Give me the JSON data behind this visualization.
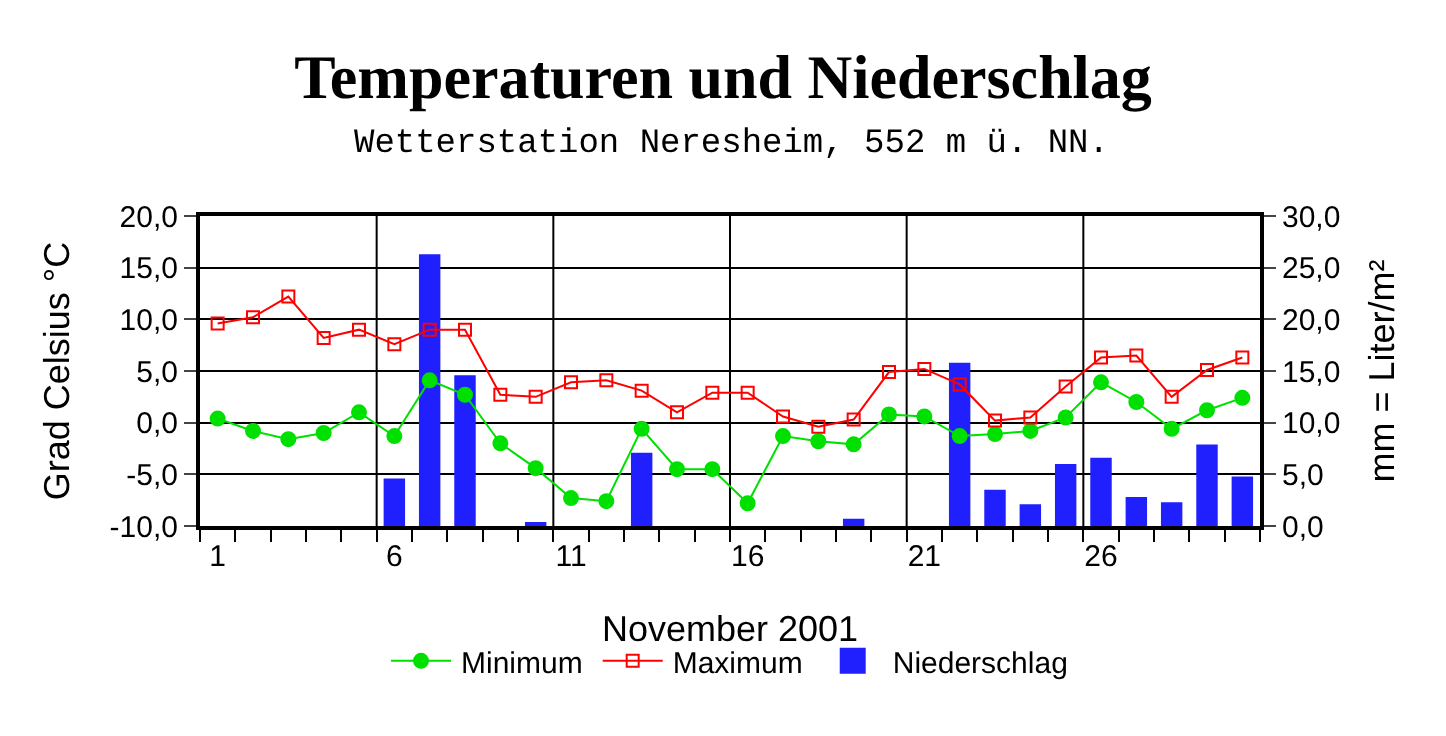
{
  "chart_data": {
    "type": "line",
    "title": "Temperaturen und Niederschlag",
    "subtitle": "Wetterstation Neresheim, 552 m ü. NN.",
    "xlabel": "November 2001",
    "ylabel": "Grad Celsius °C",
    "y2label": "mm = Liter/m²",
    "x": [
      1,
      2,
      3,
      4,
      5,
      6,
      7,
      8,
      9,
      10,
      11,
      12,
      13,
      14,
      15,
      16,
      17,
      18,
      19,
      20,
      21,
      22,
      23,
      24,
      25,
      26,
      27,
      28,
      29,
      30
    ],
    "series": [
      {
        "name": "Minimum",
        "color": "#00e000",
        "marker": "circle",
        "values": [
          0.4,
          -0.8,
          -1.6,
          -1.0,
          1.0,
          -1.3,
          4.1,
          2.7,
          -2.0,
          -4.4,
          -7.3,
          -7.6,
          -0.6,
          -4.5,
          -4.5,
          -7.8,
          -1.3,
          -1.8,
          -2.1,
          0.8,
          0.6,
          -1.3,
          -1.1,
          -0.8,
          0.5,
          3.9,
          2.0,
          -0.6,
          1.2,
          2.4
        ]
      },
      {
        "name": "Maximum",
        "color": "#ff0000",
        "marker": "square",
        "values": [
          9.6,
          10.2,
          12.2,
          8.2,
          9.0,
          7.6,
          9.0,
          9.0,
          2.7,
          2.5,
          3.9,
          4.1,
          3.1,
          1.0,
          2.9,
          2.9,
          0.6,
          -0.4,
          0.3,
          4.9,
          5.2,
          3.7,
          0.2,
          0.5,
          3.5,
          6.3,
          6.5,
          2.5,
          5.1,
          6.3
        ]
      },
      {
        "name": "Niederschlag",
        "type": "bar",
        "axis": "y2",
        "color": "#2020ff",
        "values": [
          null,
          null,
          null,
          null,
          null,
          4.5,
          26.2,
          14.5,
          null,
          0.3,
          null,
          null,
          7.0,
          null,
          null,
          null,
          null,
          null,
          0.6,
          null,
          null,
          15.7,
          3.4,
          2.0,
          5.9,
          6.5,
          2.7,
          2.2,
          7.8,
          4.7
        ]
      }
    ],
    "xlim": [
      0.5,
      30.5
    ],
    "xticks": [
      1,
      6,
      11,
      16,
      21,
      26
    ],
    "ylim": [
      -10,
      20
    ],
    "yticks": [
      {
        "value": -10,
        "label": "-10,0"
      },
      {
        "value": -5,
        "label": "-5,0"
      },
      {
        "value": 0,
        "label": "0,0"
      },
      {
        "value": 5,
        "label": "5,0"
      },
      {
        "value": 10,
        "label": "10,0"
      },
      {
        "value": 15,
        "label": "15,0"
      },
      {
        "value": 20,
        "label": "20,0"
      }
    ],
    "y2lim": [
      0,
      30
    ],
    "y2ticks": [
      {
        "value": 0,
        "label": "0,0"
      },
      {
        "value": 5,
        "label": "5,0"
      },
      {
        "value": 10,
        "label": "10,0"
      },
      {
        "value": 15,
        "label": "15,0"
      },
      {
        "value": 20,
        "label": "20,0"
      },
      {
        "value": 25,
        "label": "25,0"
      },
      {
        "value": 30,
        "label": "30,0"
      }
    ],
    "grid": true,
    "legend": "bottom",
    "line_style": "solid"
  }
}
